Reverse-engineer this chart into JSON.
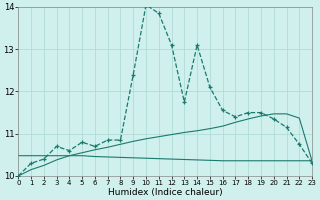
{
  "xlabel": "Humidex (Indice chaleur)",
  "x": [
    0,
    1,
    2,
    3,
    4,
    5,
    6,
    7,
    8,
    9,
    10,
    11,
    12,
    13,
    14,
    15,
    16,
    17,
    18,
    19,
    20,
    21,
    22,
    23
  ],
  "line1": [
    10.0,
    10.3,
    10.4,
    10.7,
    10.6,
    10.8,
    10.7,
    10.85,
    10.85,
    12.4,
    14.05,
    13.85,
    13.1,
    11.75,
    13.1,
    12.1,
    11.55,
    11.4,
    11.5,
    11.5,
    11.35,
    11.15,
    10.75,
    10.3
  ],
  "line2": [
    10.0,
    10.15,
    10.25,
    10.38,
    10.48,
    10.55,
    10.62,
    10.68,
    10.75,
    10.82,
    10.88,
    10.93,
    10.98,
    11.03,
    11.07,
    11.12,
    11.18,
    11.27,
    11.35,
    11.42,
    11.47,
    11.47,
    11.37,
    10.35
  ],
  "line3": [
    10.48,
    10.48,
    10.48,
    10.48,
    10.48,
    10.48,
    10.46,
    10.45,
    10.44,
    10.43,
    10.42,
    10.41,
    10.4,
    10.39,
    10.38,
    10.37,
    10.36,
    10.36,
    10.36,
    10.36,
    10.36,
    10.36,
    10.36,
    10.36
  ],
  "line_color": "#1b7a6e",
  "bg_color": "#cff0ec",
  "grid_color": "#aad8d0",
  "ylim": [
    10,
    14
  ],
  "xlim": [
    0,
    23
  ],
  "yticks": [
    10,
    11,
    12,
    13,
    14
  ],
  "xticks": [
    0,
    1,
    2,
    3,
    4,
    5,
    6,
    7,
    8,
    9,
    10,
    11,
    12,
    13,
    14,
    15,
    16,
    17,
    18,
    19,
    20,
    21,
    22,
    23
  ]
}
